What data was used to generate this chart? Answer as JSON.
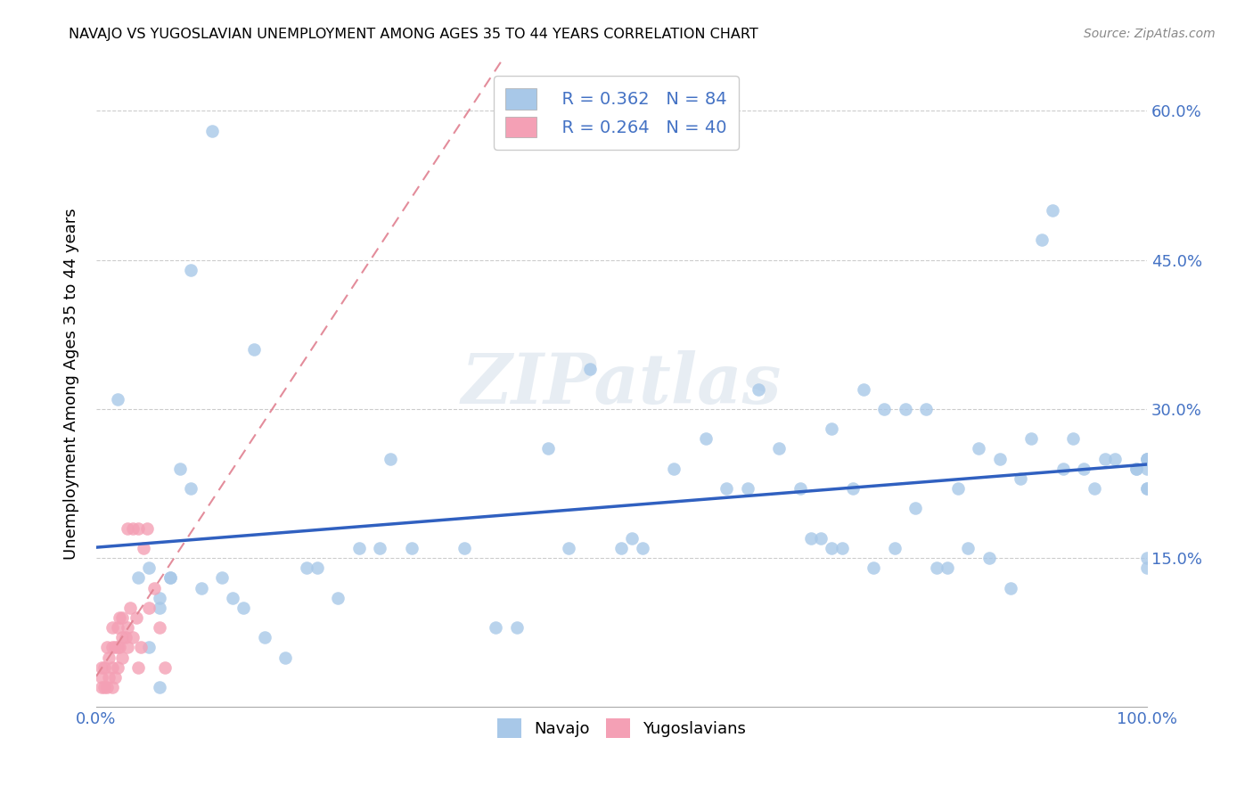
{
  "title": "NAVAJO VS YUGOSLAVIAN UNEMPLOYMENT AMONG AGES 35 TO 44 YEARS CORRELATION CHART",
  "source": "Source: ZipAtlas.com",
  "ylabel_label": "Unemployment Among Ages 35 to 44 years",
  "xlim": [
    0.0,
    1.0
  ],
  "ylim": [
    0.0,
    0.65
  ],
  "xticks": [
    0.0,
    0.25,
    0.5,
    0.75,
    1.0
  ],
  "yticks": [
    0.0,
    0.15,
    0.3,
    0.45,
    0.6
  ],
  "navajo_R": 0.362,
  "navajo_N": 84,
  "yugoslav_R": 0.264,
  "yugoslav_N": 40,
  "navajo_color": "#a8c8e8",
  "yugoslav_color": "#f4a0b5",
  "navajo_line_color": "#3060c0",
  "yugoslav_line_color": "#e08090",
  "navajo_x": [
    0.02,
    0.04,
    0.05,
    0.05,
    0.06,
    0.06,
    0.06,
    0.07,
    0.07,
    0.08,
    0.09,
    0.09,
    0.1,
    0.11,
    0.12,
    0.13,
    0.14,
    0.15,
    0.16,
    0.18,
    0.2,
    0.21,
    0.23,
    0.25,
    0.27,
    0.28,
    0.3,
    0.35,
    0.38,
    0.4,
    0.43,
    0.45,
    0.47,
    0.5,
    0.51,
    0.52,
    0.55,
    0.58,
    0.6,
    0.62,
    0.63,
    0.65,
    0.67,
    0.68,
    0.69,
    0.7,
    0.7,
    0.71,
    0.72,
    0.73,
    0.74,
    0.75,
    0.76,
    0.77,
    0.78,
    0.79,
    0.8,
    0.81,
    0.82,
    0.83,
    0.84,
    0.85,
    0.86,
    0.87,
    0.88,
    0.89,
    0.9,
    0.91,
    0.92,
    0.93,
    0.94,
    0.95,
    0.96,
    0.97,
    0.99,
    0.99,
    1.0,
    1.0,
    1.0,
    1.0,
    1.0,
    1.0,
    1.0,
    1.0
  ],
  "navajo_y": [
    0.31,
    0.13,
    0.14,
    0.06,
    0.11,
    0.1,
    0.02,
    0.13,
    0.13,
    0.24,
    0.44,
    0.22,
    0.12,
    0.58,
    0.13,
    0.11,
    0.1,
    0.36,
    0.07,
    0.05,
    0.14,
    0.14,
    0.11,
    0.16,
    0.16,
    0.25,
    0.16,
    0.16,
    0.08,
    0.08,
    0.26,
    0.16,
    0.34,
    0.16,
    0.17,
    0.16,
    0.24,
    0.27,
    0.22,
    0.22,
    0.32,
    0.26,
    0.22,
    0.17,
    0.17,
    0.16,
    0.28,
    0.16,
    0.22,
    0.32,
    0.14,
    0.3,
    0.16,
    0.3,
    0.2,
    0.3,
    0.14,
    0.14,
    0.22,
    0.16,
    0.26,
    0.15,
    0.25,
    0.12,
    0.23,
    0.27,
    0.47,
    0.5,
    0.24,
    0.27,
    0.24,
    0.22,
    0.25,
    0.25,
    0.24,
    0.24,
    0.24,
    0.15,
    0.14,
    0.25,
    0.25,
    0.22,
    0.22,
    0.25
  ],
  "yugoslav_x": [
    0.005,
    0.005,
    0.005,
    0.008,
    0.008,
    0.01,
    0.01,
    0.012,
    0.012,
    0.015,
    0.015,
    0.015,
    0.015,
    0.018,
    0.018,
    0.02,
    0.02,
    0.02,
    0.022,
    0.022,
    0.025,
    0.025,
    0.025,
    0.028,
    0.03,
    0.03,
    0.03,
    0.032,
    0.035,
    0.035,
    0.038,
    0.04,
    0.04,
    0.042,
    0.045,
    0.048,
    0.05,
    0.055,
    0.06,
    0.065
  ],
  "yugoslav_y": [
    0.02,
    0.03,
    0.04,
    0.02,
    0.04,
    0.02,
    0.06,
    0.03,
    0.05,
    0.02,
    0.04,
    0.06,
    0.08,
    0.03,
    0.06,
    0.04,
    0.06,
    0.08,
    0.06,
    0.09,
    0.05,
    0.07,
    0.09,
    0.07,
    0.06,
    0.08,
    0.18,
    0.1,
    0.07,
    0.18,
    0.09,
    0.04,
    0.18,
    0.06,
    0.16,
    0.18,
    0.1,
    0.12,
    0.08,
    0.04
  ],
  "yugoslav_line_xmax": 0.25,
  "yugoslav_line_xmin": 0.0
}
